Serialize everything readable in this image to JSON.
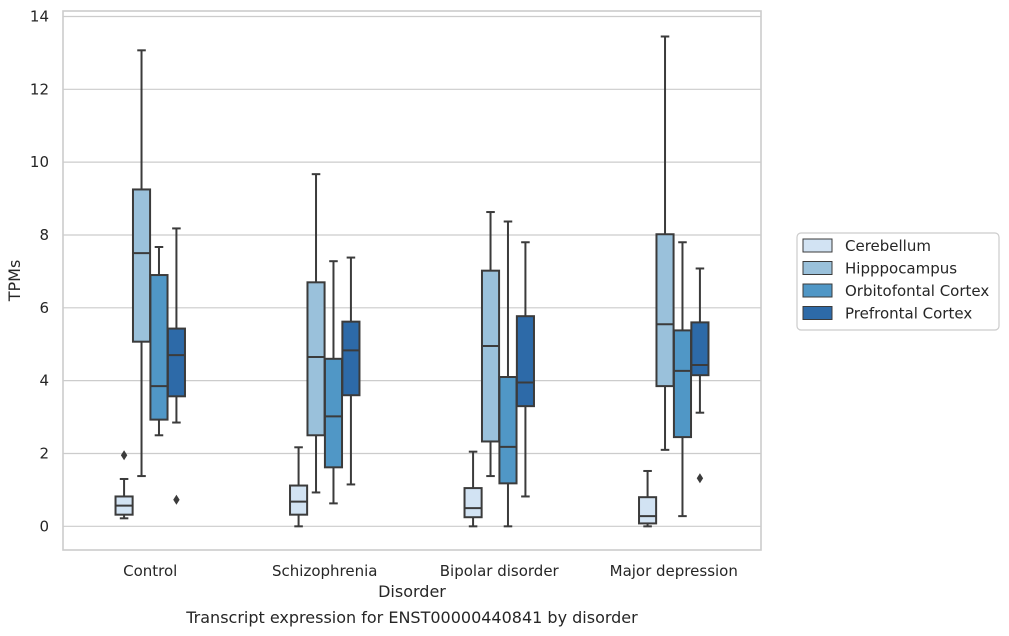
{
  "caption": "Transcript expression for ENST00000440841 by disorder",
  "chart_data": {
    "type": "boxplot",
    "xlabel": "Disorder",
    "ylabel": "TPMs",
    "ylim": [
      -0.65,
      14.15
    ],
    "yticks": [
      0,
      2,
      4,
      6,
      8,
      10,
      12,
      14
    ],
    "grid": "horizontal",
    "legend_position": "right",
    "categories": [
      "Control",
      "Schizophrenia",
      "Bipolar disorder",
      "Major depression"
    ],
    "series": [
      {
        "name": "Cerebellum",
        "color": "#d2e3f3",
        "boxes": [
          {
            "whislo": 0.22,
            "q1": 0.32,
            "med": 0.57,
            "q3": 0.82,
            "whishi": 1.3,
            "fliers": [
              1.95
            ]
          },
          {
            "whislo": 0.0,
            "q1": 0.32,
            "med": 0.68,
            "q3": 1.12,
            "whishi": 2.17,
            "fliers": []
          },
          {
            "whislo": 0.0,
            "q1": 0.25,
            "med": 0.5,
            "q3": 1.05,
            "whishi": 2.05,
            "fliers": []
          },
          {
            "whislo": 0.0,
            "q1": 0.08,
            "med": 0.28,
            "q3": 0.8,
            "whishi": 1.52,
            "fliers": []
          }
        ]
      },
      {
        "name": "Hipppocampus",
        "color": "#9ac1db",
        "boxes": [
          {
            "whislo": 1.38,
            "q1": 5.07,
            "med": 7.5,
            "q3": 9.25,
            "whishi": 13.07,
            "fliers": []
          },
          {
            "whislo": 0.93,
            "q1": 2.5,
            "med": 4.65,
            "q3": 6.7,
            "whishi": 9.67,
            "fliers": []
          },
          {
            "whislo": 1.38,
            "q1": 2.33,
            "med": 4.95,
            "q3": 7.02,
            "whishi": 8.63,
            "fliers": []
          },
          {
            "whislo": 2.1,
            "q1": 3.85,
            "med": 5.55,
            "q3": 8.02,
            "whishi": 13.45,
            "fliers": []
          }
        ]
      },
      {
        "name": "Orbitofontal Cortex",
        "color": "#5097c6",
        "boxes": [
          {
            "whislo": 2.5,
            "q1": 2.93,
            "med": 3.85,
            "q3": 6.9,
            "whishi": 7.67,
            "fliers": []
          },
          {
            "whislo": 0.63,
            "q1": 1.62,
            "med": 3.02,
            "q3": 4.6,
            "whishi": 7.28,
            "fliers": []
          },
          {
            "whislo": 0.0,
            "q1": 1.18,
            "med": 2.18,
            "q3": 4.1,
            "whishi": 8.37,
            "fliers": []
          },
          {
            "whislo": 0.28,
            "q1": 2.45,
            "med": 4.27,
            "q3": 5.38,
            "whishi": 7.8,
            "fliers": []
          }
        ]
      },
      {
        "name": "Prefrontal Cortex",
        "color": "#2d6aa8",
        "boxes": [
          {
            "whislo": 2.85,
            "q1": 3.57,
            "med": 4.7,
            "q3": 5.43,
            "whishi": 8.18,
            "fliers": [
              0.73
            ]
          },
          {
            "whislo": 1.15,
            "q1": 3.6,
            "med": 4.83,
            "q3": 5.62,
            "whishi": 7.38,
            "fliers": []
          },
          {
            "whislo": 0.82,
            "q1": 3.3,
            "med": 3.95,
            "q3": 5.77,
            "whishi": 7.8,
            "fliers": []
          },
          {
            "whislo": 3.12,
            "q1": 4.15,
            "med": 4.43,
            "q3": 5.6,
            "whishi": 7.08,
            "fliers": [
              1.32
            ]
          }
        ]
      }
    ]
  }
}
